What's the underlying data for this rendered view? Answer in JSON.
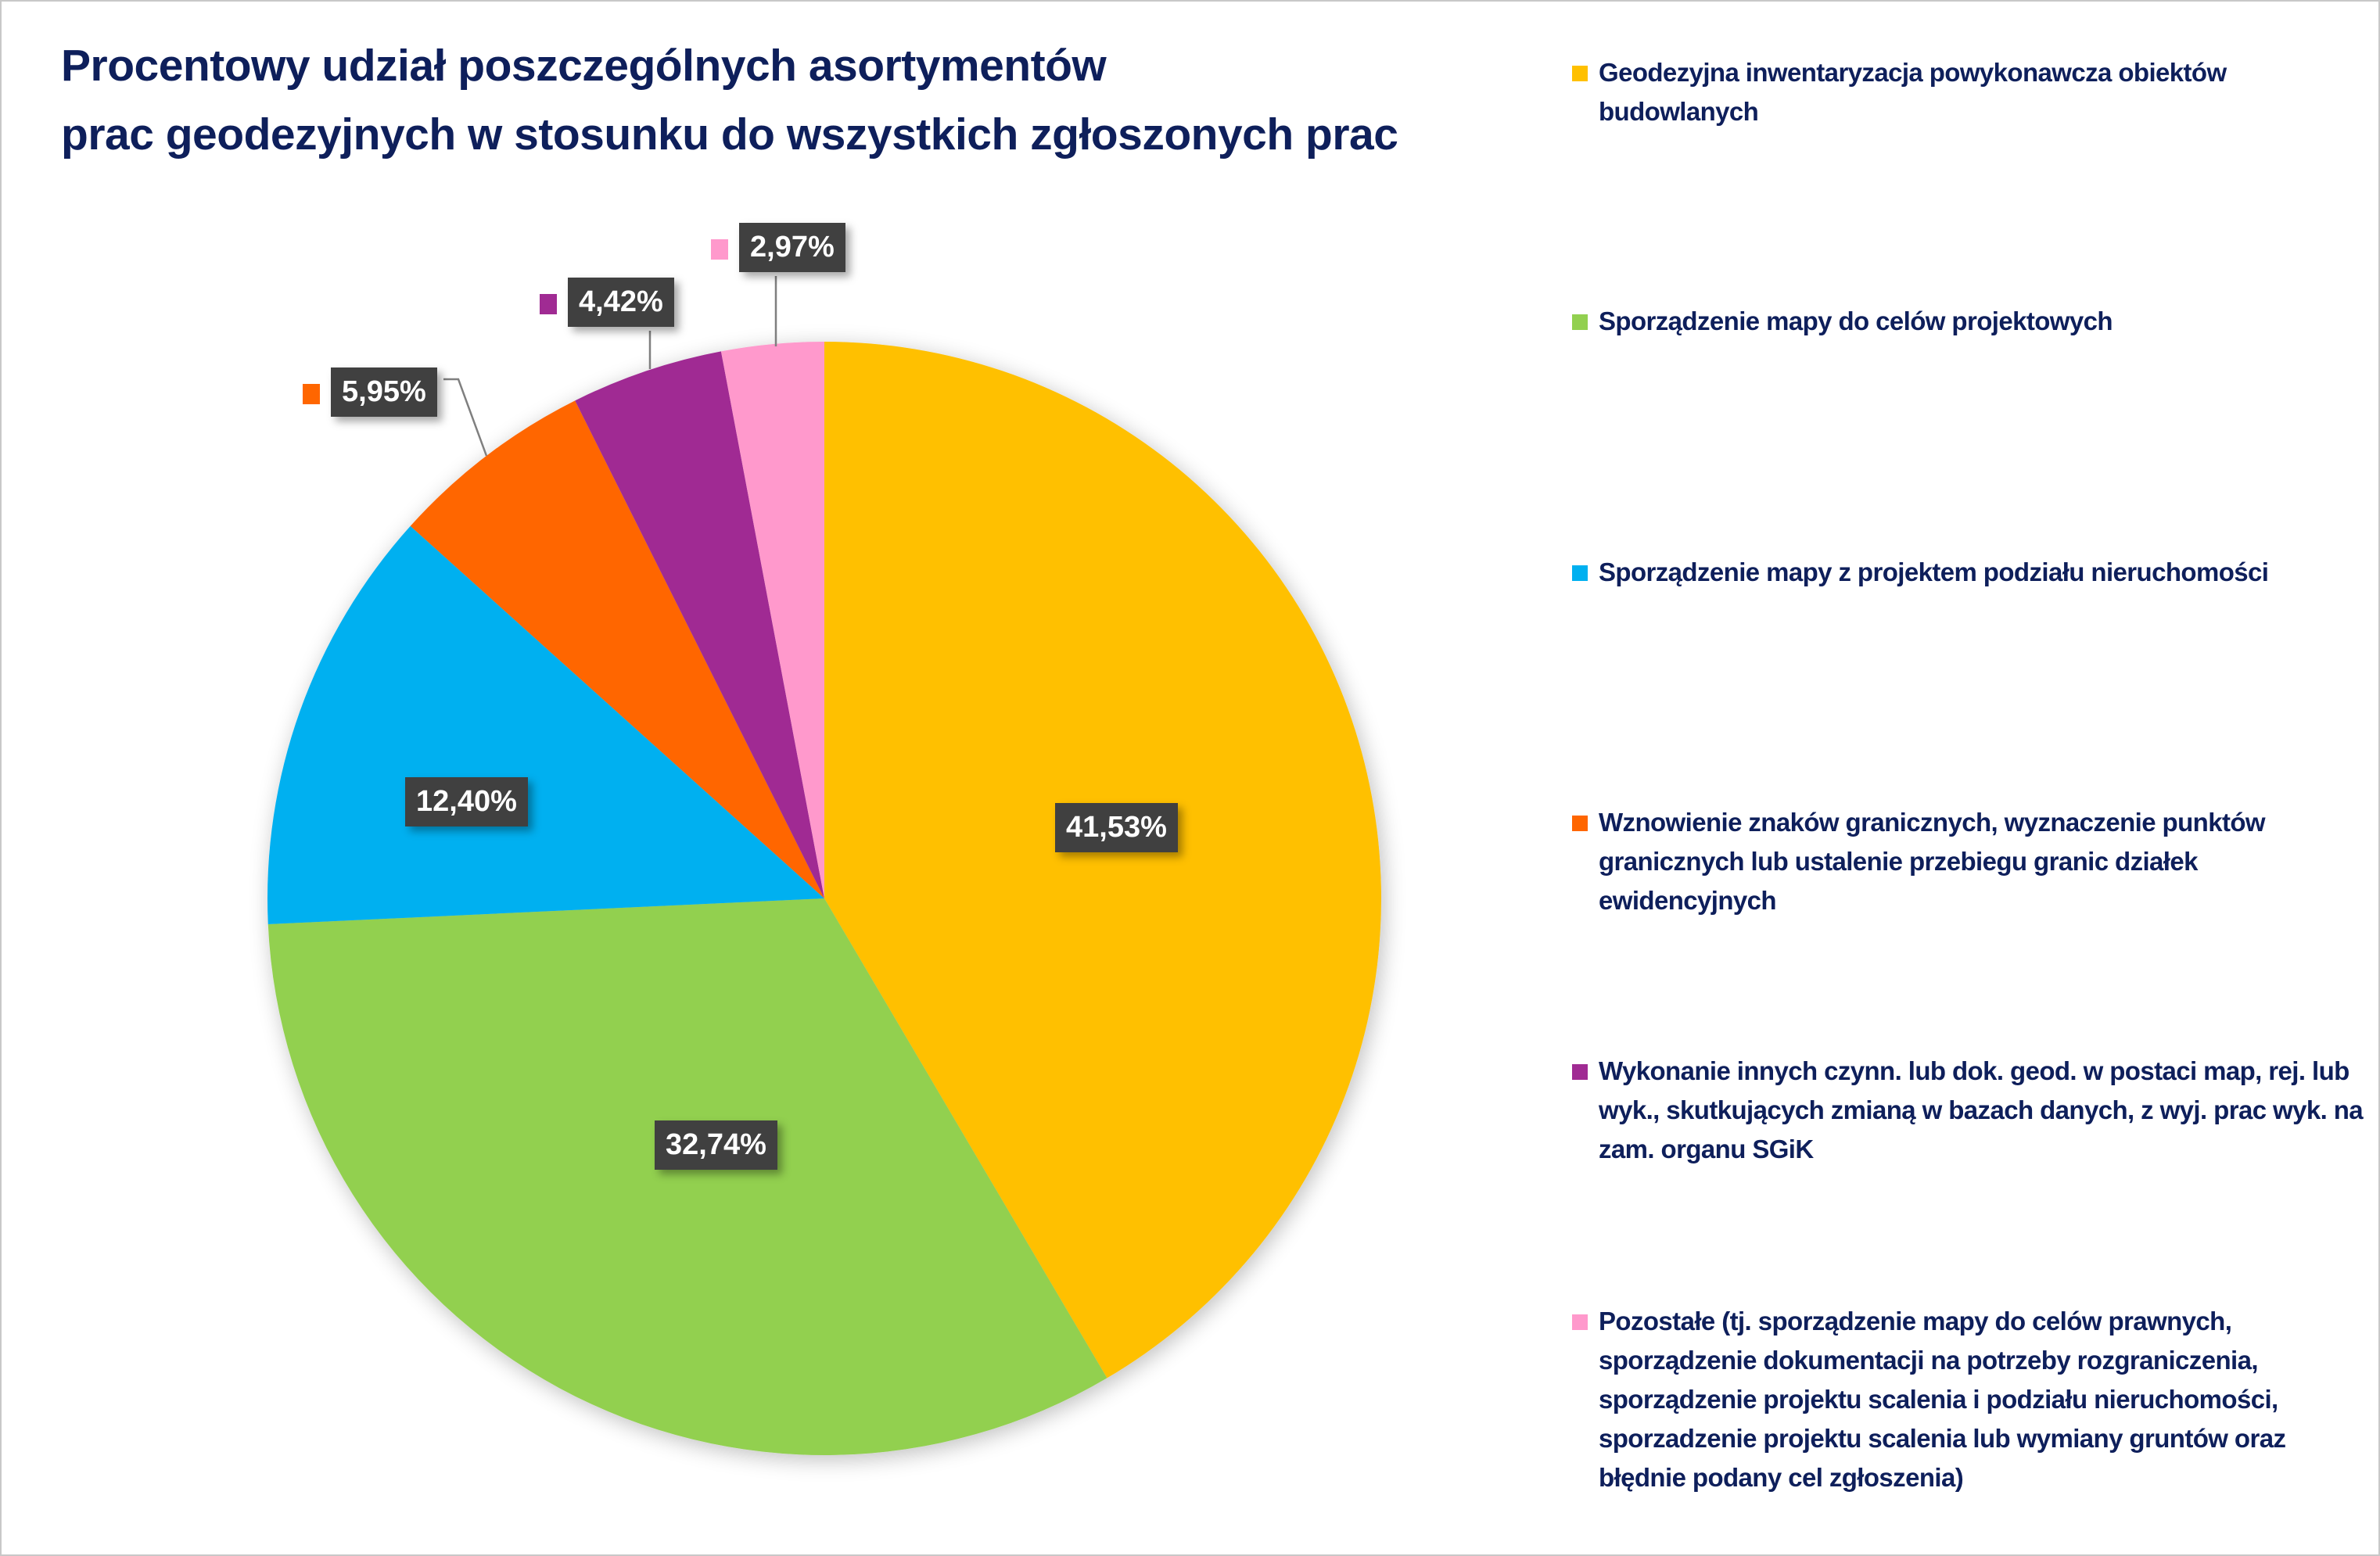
{
  "chart_data": {
    "type": "pie",
    "title": [
      "Procentowy udział poszczególnych asortymentów",
      "prac geodezyjnych w stosunku do wszystkich zgłoszonych prac"
    ],
    "legend_position": "right",
    "slices": [
      {
        "name": "Geodezyjna inwentaryzacja powykonawcza obiektów budowlanych",
        "value": 41.53,
        "label": "41,53%",
        "color": "#FFC000"
      },
      {
        "name": "Sporządzenie mapy do celów projektowych",
        "value": 32.74,
        "label": "32,74%",
        "color": "#92D050"
      },
      {
        "name": "Sporządzenie mapy z projektem podziału nieruchomości",
        "value": 12.4,
        "label": "12,40%",
        "color": "#00B0F0"
      },
      {
        "name": "Wznowienie znaków granicznych, wyznaczenie punktów granicznych lub ustalenie przebiegu granic działek ewidencyjnych",
        "value": 5.95,
        "label": "5,95%",
        "color": "#FF6600"
      },
      {
        "name": "Wykonanie innych czynn. lub dok. geod. w postaci map, rej. lub wyk., skutkujących zmianą w bazach danych, z wyj. prac wyk. na zam. organu SGiK",
        "value": 4.42,
        "label": "4,42%",
        "color": "#A02B93"
      },
      {
        "name": "Pozostałe (tj. sporządzenie mapy do celów prawnych, sporządzenie dokumentacji na potrzeby rozgraniczenia, sporządzenie projektu scalenia i podziału nieruchomości, sporzadzenie projektu scalenia lub wymiany gruntów oraz błędnie podany cel zgłoszenia)",
        "value": 2.97,
        "label": "2,97%",
        "color": "#FF99CC"
      }
    ]
  }
}
